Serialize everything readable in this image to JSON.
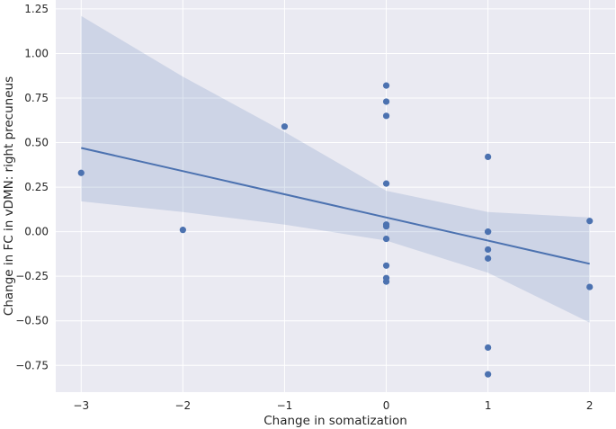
{
  "chart_data": {
    "type": "scatter",
    "title": "",
    "xlabel": "Change in somatization",
    "ylabel": "Change in FC in vDMN: right precuneus",
    "xlim": [
      -3.25,
      2.25
    ],
    "ylim": [
      -0.9,
      1.3
    ],
    "xticks": [
      -3,
      -2,
      -1,
      0,
      1,
      2
    ],
    "xtick_labels": [
      "−3",
      "−2",
      "−1",
      "0",
      "1",
      "2"
    ],
    "yticks": [
      -0.75,
      -0.5,
      -0.25,
      0,
      0.25,
      0.5,
      0.75,
      1.0,
      1.25
    ],
    "ytick_labels": [
      "−0.75",
      "−0.50",
      "−0.25",
      "0.00",
      "0.25",
      "0.50",
      "0.75",
      "1.00",
      "1.25"
    ],
    "grid": true,
    "colors": {
      "background": "#eaeaf2",
      "grid": "#ffffff",
      "series": "#4c72b0",
      "band": "#4c72b0"
    },
    "series": [
      {
        "points": [
          {
            "x": -3,
            "y": 0.33
          },
          {
            "x": -2,
            "y": 0.01
          },
          {
            "x": -1,
            "y": 0.59
          },
          {
            "x": 0,
            "y": 0.82
          },
          {
            "x": 0,
            "y": 0.73
          },
          {
            "x": 0,
            "y": 0.65
          },
          {
            "x": 0,
            "y": 0.27
          },
          {
            "x": 0,
            "y": 0.04
          },
          {
            "x": 0,
            "y": 0.03
          },
          {
            "x": 0,
            "y": -0.04
          },
          {
            "x": 0,
            "y": -0.19
          },
          {
            "x": 0,
            "y": -0.26
          },
          {
            "x": 0,
            "y": -0.28
          },
          {
            "x": 1,
            "y": 0.42
          },
          {
            "x": 1,
            "y": 0.0
          },
          {
            "x": 1,
            "y": 0.0
          },
          {
            "x": 1,
            "y": -0.1
          },
          {
            "x": 1,
            "y": -0.15
          },
          {
            "x": 1,
            "y": -0.65
          },
          {
            "x": 1,
            "y": -0.8
          },
          {
            "x": 2,
            "y": 0.06
          },
          {
            "x": 2,
            "y": -0.31
          }
        ]
      }
    ],
    "regression": {
      "line": [
        {
          "x": -3,
          "y": 0.47
        },
        {
          "x": 2,
          "y": -0.18
        }
      ],
      "ci_upper": [
        {
          "x": -3,
          "y": 1.21
        },
        {
          "x": -2,
          "y": 0.87
        },
        {
          "x": -1,
          "y": 0.56
        },
        {
          "x": 0,
          "y": 0.23
        },
        {
          "x": 1,
          "y": 0.11
        },
        {
          "x": 2,
          "y": 0.08
        }
      ],
      "ci_lower": [
        {
          "x": -3,
          "y": 0.17
        },
        {
          "x": -2,
          "y": 0.11
        },
        {
          "x": -1,
          "y": 0.04
        },
        {
          "x": 0,
          "y": -0.05
        },
        {
          "x": 1,
          "y": -0.23
        },
        {
          "x": 2,
          "y": -0.51
        }
      ]
    }
  }
}
